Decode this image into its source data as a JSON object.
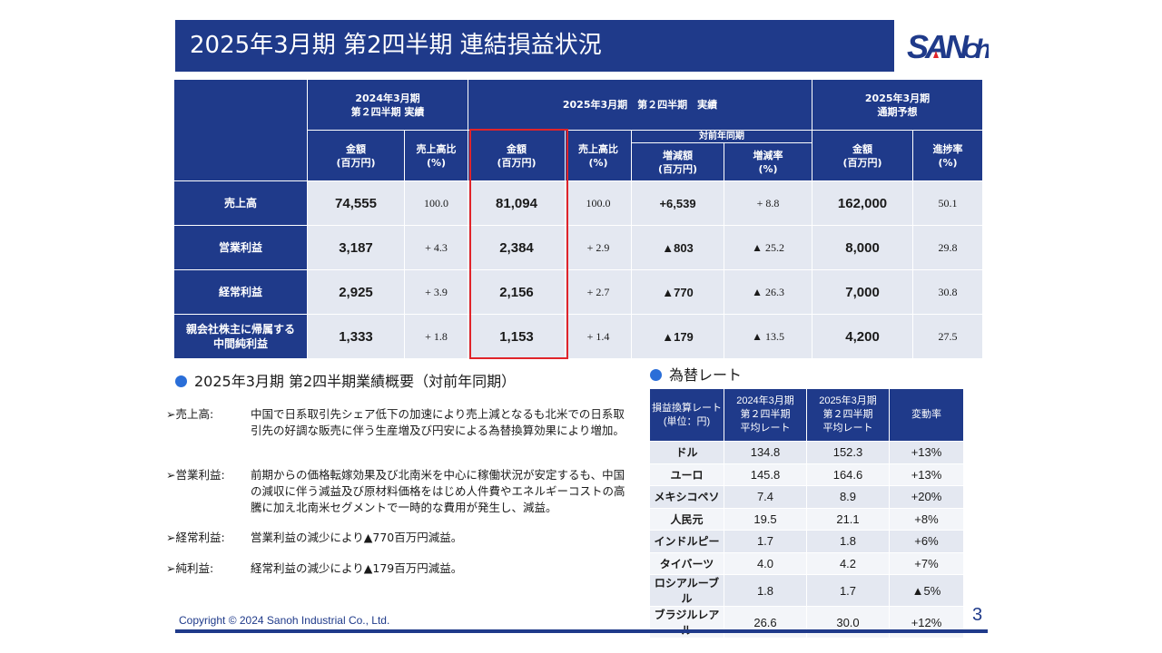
{
  "title": "2025年3月期 第2四半期 連結損益状況",
  "logo": {
    "text": "SANOh",
    "color": "#1f3a8a",
    "accent": "#e0242a"
  },
  "main_table": {
    "group_headers": {
      "prev": "2024年3月期\n第２四半期 実績",
      "curr": "2025年3月期　第２四半期　実績",
      "forecast": "2025年3月期\n通期予想",
      "yoy": "対前年同期"
    },
    "sub_headers": {
      "prev_amount": "金額\n(百万円)",
      "prev_ratio": "売上高比\n(%)",
      "curr_amount": "金額\n(百万円)",
      "curr_ratio": "売上高比\n(%)",
      "change_amount": "増減額\n(百万円)",
      "change_rate": "増減率\n(%)",
      "fc_amount": "金額\n(百万円)",
      "progress": "進捗率\n(%)"
    },
    "rows": [
      {
        "label": "売上高",
        "prev_amount": "74,555",
        "prev_ratio": "100.0",
        "curr_amount": "81,094",
        "curr_ratio": "100.0",
        "change_amount": "+6,539",
        "change_rate": "+ 8.8",
        "fc_amount": "162,000",
        "progress": "50.1"
      },
      {
        "label": "営業利益",
        "prev_amount": "3,187",
        "prev_ratio": "+ 4.3",
        "curr_amount": "2,384",
        "curr_ratio": "+ 2.9",
        "change_amount": "▲803",
        "change_rate": "▲ 25.2",
        "fc_amount": "8,000",
        "progress": "29.8"
      },
      {
        "label": "経常利益",
        "prev_amount": "2,925",
        "prev_ratio": "+ 3.9",
        "curr_amount": "2,156",
        "curr_ratio": "+ 2.7",
        "change_amount": "▲770",
        "change_rate": "▲ 26.3",
        "fc_amount": "7,000",
        "progress": "30.8"
      },
      {
        "label": "親会社株主に帰属する\n中間純利益",
        "prev_amount": "1,333",
        "prev_ratio": "+ 1.8",
        "curr_amount": "1,153",
        "curr_ratio": "+ 1.4",
        "change_amount": "▲179",
        "change_rate": "▲ 13.5",
        "fc_amount": "4,200",
        "progress": "27.5"
      }
    ]
  },
  "summary": {
    "title": "2025年3月期 第2四半期業績概要（対前年同期）",
    "items": [
      {
        "label": "➢売上高:",
        "text": "中国で日系取引先シェア低下の加速により売上減となるも北米での日系取引先の好調な販売に伴う生産増及び円安による為替換算効果により増加。"
      },
      {
        "label": "➢営業利益:",
        "text": "前期からの価格転嫁効果及び北南米を中心に稼働状況が安定するも、中国の減収に伴う減益及び原材料価格をはじめ人件費やエネルギーコストの高騰に加え北南米セグメントで一時的な費用が発生し、減益。"
      },
      {
        "label": "➢経常利益:",
        "text": "営業利益の減少により▲770百万円減益。"
      },
      {
        "label": "➢純利益:",
        "text": "経常利益の減少により▲179百万円減益。"
      }
    ]
  },
  "fx": {
    "title": "為替レート",
    "headers": [
      "損益換算レート\n(単位：円)",
      "2024年3月期\n第２四半期\n平均レート",
      "2025年3月期\n第２四半期\n平均レート",
      "変動率"
    ],
    "rows": [
      {
        "currency": "ドル",
        "prev": "134.8",
        "curr": "152.3",
        "change": "+13%"
      },
      {
        "currency": "ユーロ",
        "prev": "145.8",
        "curr": "164.6",
        "change": "+13%"
      },
      {
        "currency": "メキシコペソ",
        "prev": "7.4",
        "curr": "8.9",
        "change": "+20%"
      },
      {
        "currency": "人民元",
        "prev": "19.5",
        "curr": "21.1",
        "change": "+8%"
      },
      {
        "currency": "インドルピー",
        "prev": "1.7",
        "curr": "1.8",
        "change": "+6%"
      },
      {
        "currency": "タイバーツ",
        "prev": "4.0",
        "curr": "4.2",
        "change": "+7%"
      },
      {
        "currency": "ロシアルーブル",
        "prev": "1.8",
        "curr": "1.7",
        "change": "▲5%"
      },
      {
        "currency": "ブラジルレアル",
        "prev": "26.6",
        "curr": "30.0",
        "change": "+12%"
      }
    ]
  },
  "footer": {
    "copyright": "Copyright © 2024 Sanoh Industrial Co., Ltd.",
    "page": "3"
  }
}
